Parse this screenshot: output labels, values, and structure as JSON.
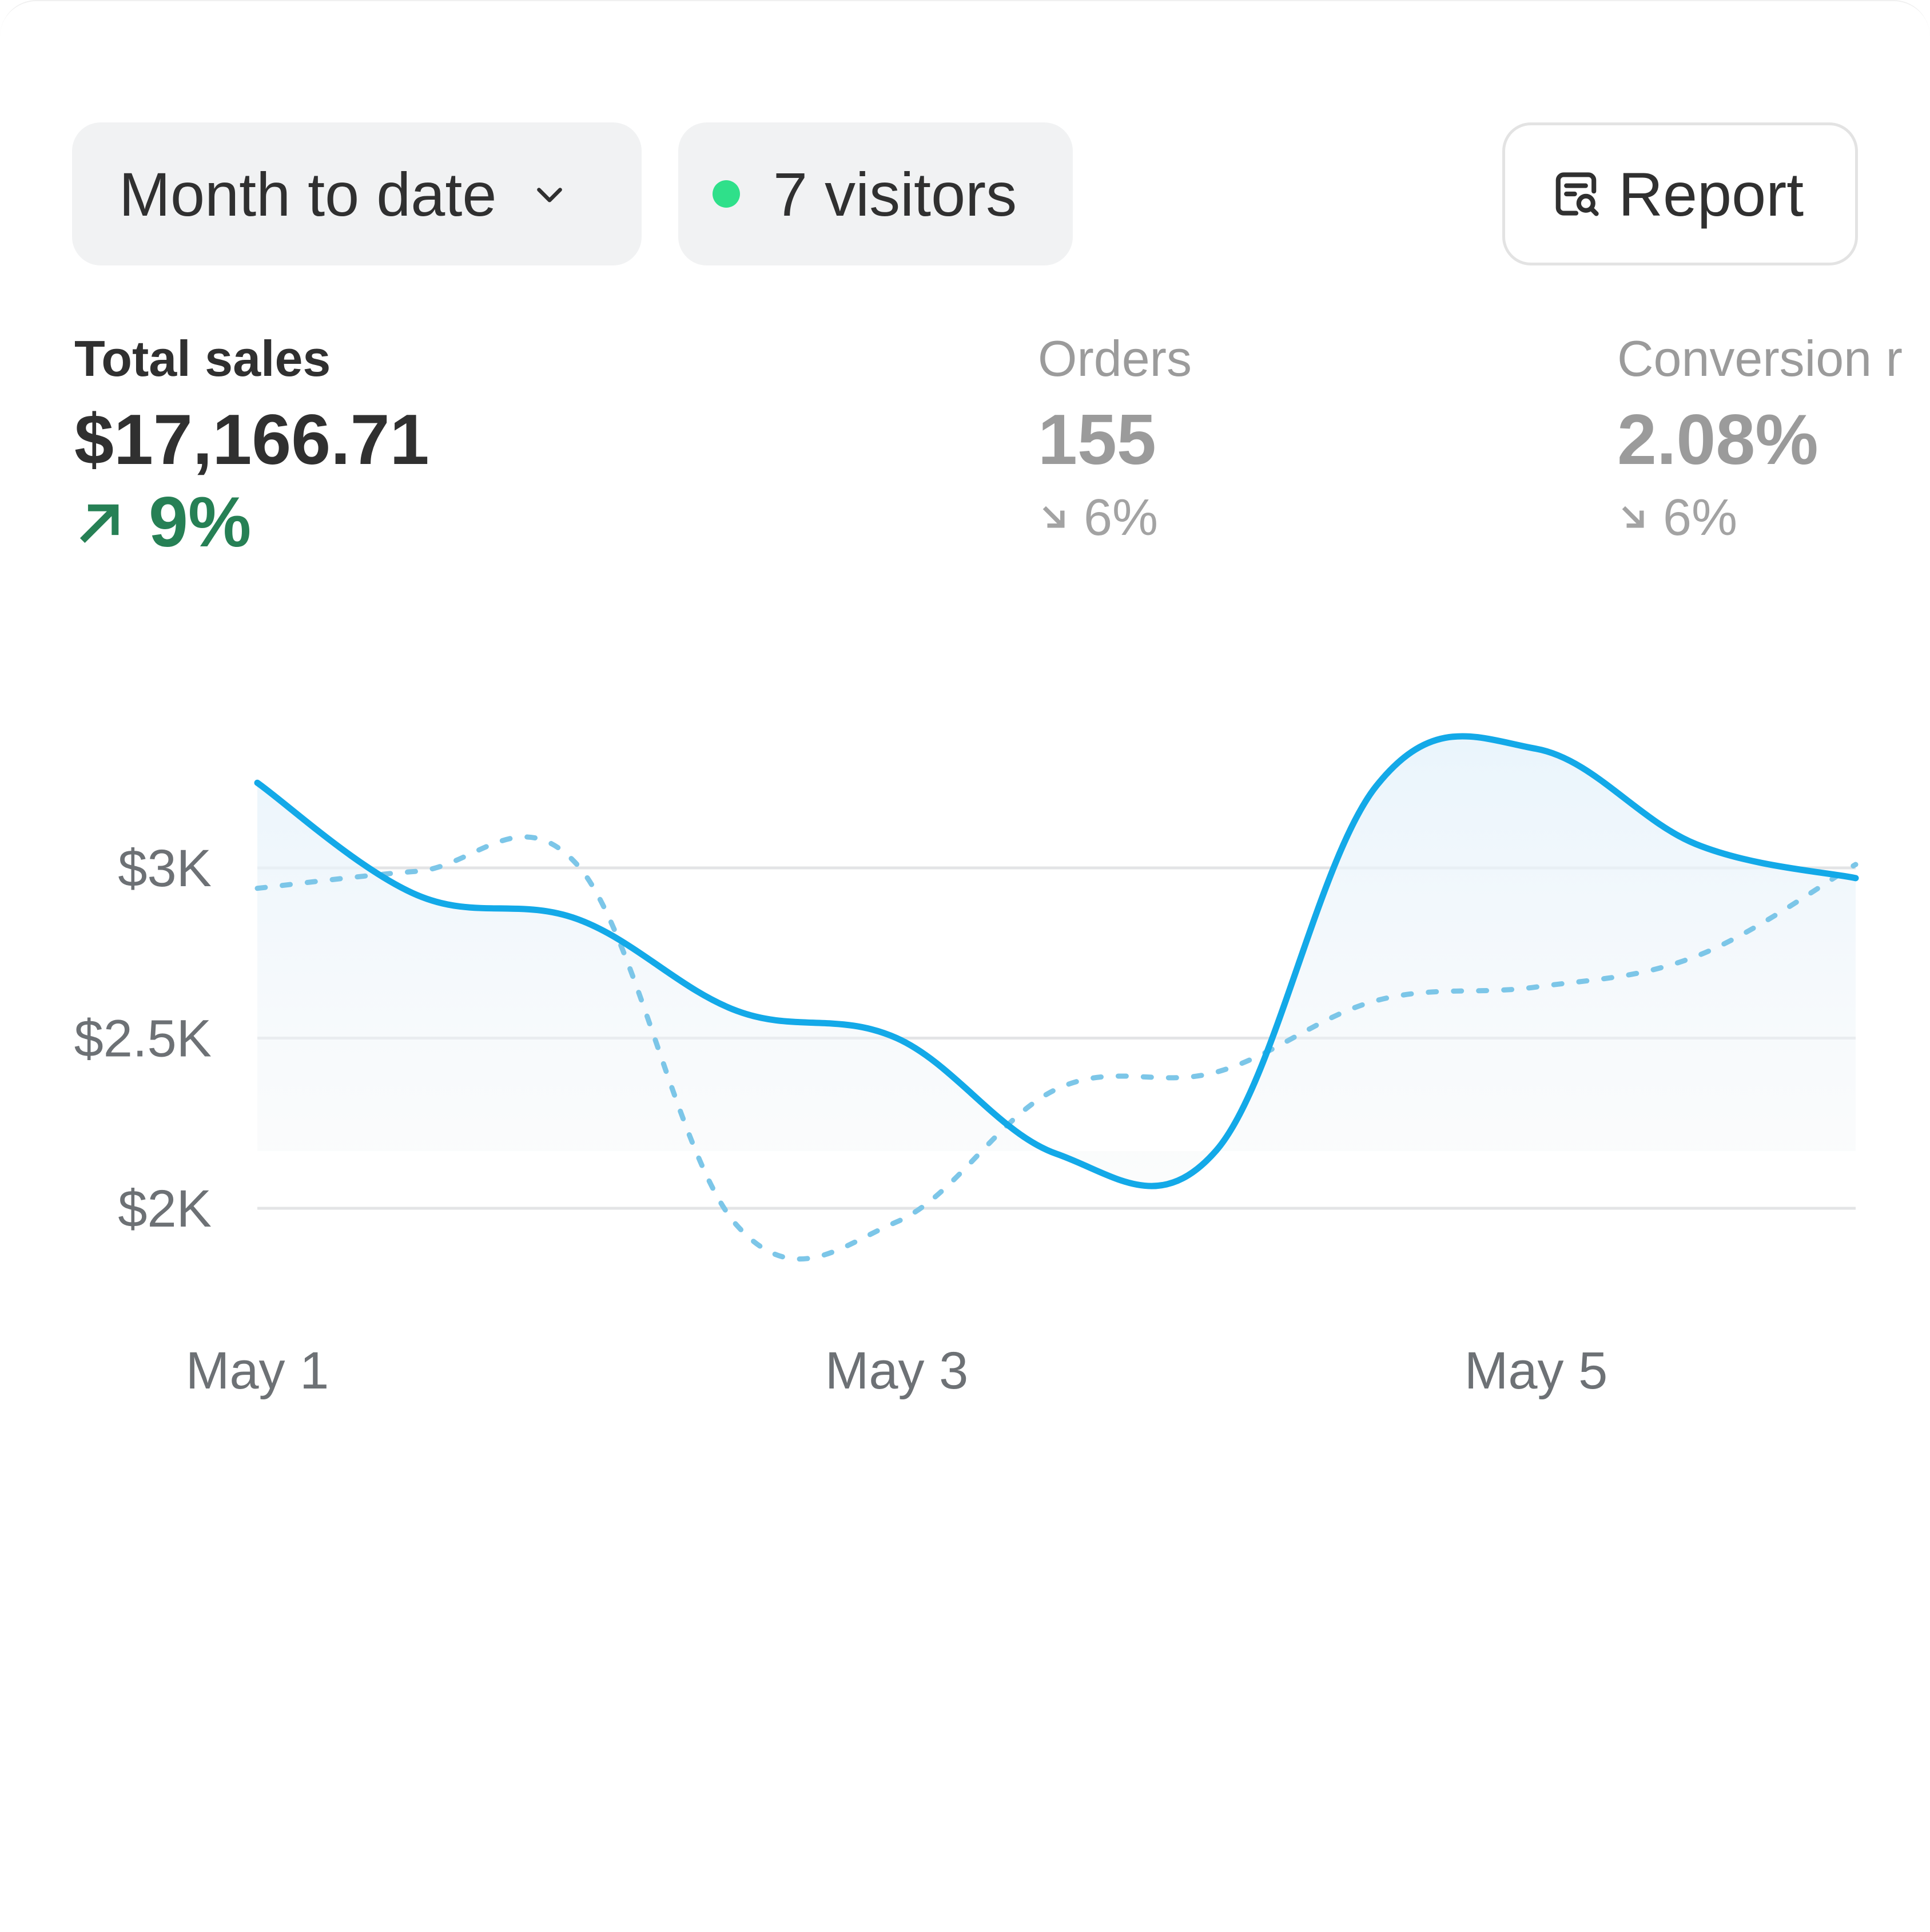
{
  "toolbar": {
    "date_range_label": "Month to date",
    "date_range_icon": "chevron-down-icon",
    "visitors_label": "7 visitors",
    "live_indicator_color": "#2fe08a",
    "report_label": "Report",
    "report_icon": "report-search-icon"
  },
  "metrics": [
    {
      "label": "Total sales",
      "value": "$17,166.71",
      "delta": "9%",
      "direction": "up",
      "color": "#268055"
    },
    {
      "label": "Orders",
      "value": "155",
      "delta": "6%",
      "direction": "down"
    },
    {
      "label": "Conversion r",
      "value": "2.08%",
      "delta": "6%",
      "direction": "down"
    }
  ],
  "chart_data": {
    "type": "line",
    "x": [
      1,
      1.5,
      2,
      2.5,
      3,
      3.5,
      4,
      4.5,
      5,
      5.5,
      6
    ],
    "x_tick_labels": [
      {
        "x": 1,
        "label": "May 1"
      },
      {
        "x": 3,
        "label": "May 3"
      },
      {
        "x": 5,
        "label": "May 5"
      }
    ],
    "series": [
      {
        "values": [
          3250,
          2920,
          2850,
          2580,
          2500,
          2160,
          2170,
          3240,
          3350,
          3070,
          2970
        ],
        "style": "solid",
        "color": "#13a9e8"
      },
      {
        "values": [
          2940,
          2990,
          3010,
          1950,
          1960,
          2350,
          2400,
          2610,
          2650,
          2740,
          3010
        ],
        "style": "dashed",
        "color": "#7cc6e8"
      }
    ],
    "y_ticks": [
      {
        "value": 3000,
        "label": "$3K"
      },
      {
        "value": 2500,
        "label": "$2.5K"
      },
      {
        "value": 2000,
        "label": "$2K"
      }
    ],
    "ylim": [
      1800,
      3500
    ],
    "grid": true,
    "legend": "none",
    "area_fill": true
  }
}
